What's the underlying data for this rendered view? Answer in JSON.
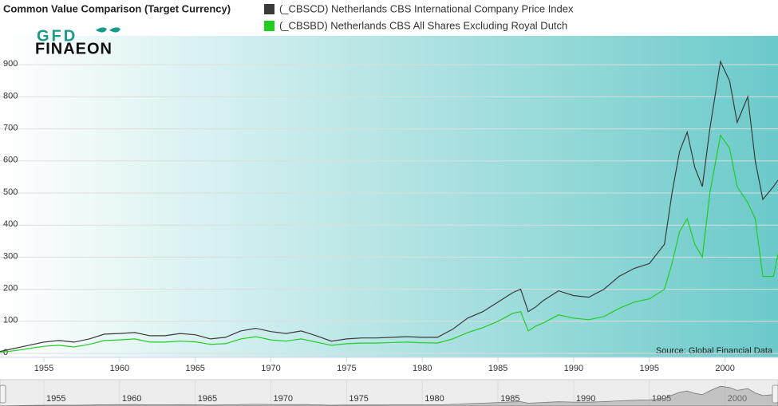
{
  "chart_data": {
    "type": "line",
    "title": "Common Value Comparison (Target Currency)",
    "logo": {
      "top": "GFD",
      "bottom": "FINAEON"
    },
    "source": "Source: Global Financial Data",
    "x": [
      1952,
      1953,
      1954,
      1955,
      1956,
      1957,
      1958,
      1959,
      1960,
      1961,
      1962,
      1963,
      1964,
      1965,
      1966,
      1967,
      1968,
      1969,
      1970,
      1971,
      1972,
      1973,
      1974,
      1975,
      1976,
      1977,
      1978,
      1979,
      1980,
      1981,
      1982,
      1983,
      1984,
      1985,
      1986,
      1986.5,
      1987,
      1987.5,
      1988,
      1989,
      1990,
      1991,
      1992,
      1993,
      1994,
      1995,
      1996,
      1996.5,
      1997,
      1997.5,
      1998,
      1998.5,
      1999,
      1999.7,
      2000.3,
      2000.8,
      2001.5,
      2002,
      2002.5,
      2003.2,
      2003.5
    ],
    "series": [
      {
        "name": "(_CBSCD) Netherlands CBS International Company Price Index",
        "color": "#3a3a3a",
        "values": [
          5,
          15,
          25,
          35,
          40,
          35,
          45,
          60,
          62,
          65,
          55,
          55,
          62,
          58,
          45,
          50,
          70,
          78,
          68,
          62,
          70,
          55,
          38,
          45,
          48,
          48,
          50,
          52,
          50,
          50,
          75,
          110,
          130,
          160,
          190,
          200,
          130,
          145,
          165,
          195,
          180,
          175,
          200,
          240,
          265,
          280,
          340,
          500,
          630,
          690,
          580,
          520,
          700,
          910,
          850,
          720,
          800,
          600,
          480,
          520,
          540
        ]
      },
      {
        "name": "(_CBSBD) Netherlands CBS All Shares Excluding Royal Dutch",
        "color": "#22cc22",
        "values": [
          3,
          8,
          15,
          22,
          25,
          20,
          28,
          40,
          42,
          45,
          35,
          35,
          38,
          36,
          28,
          30,
          45,
          52,
          42,
          38,
          45,
          35,
          25,
          30,
          32,
          32,
          34,
          35,
          33,
          32,
          45,
          65,
          80,
          100,
          125,
          130,
          70,
          85,
          95,
          120,
          110,
          105,
          115,
          140,
          160,
          170,
          200,
          280,
          380,
          420,
          340,
          300,
          500,
          680,
          640,
          520,
          470,
          420,
          240,
          240,
          310
        ]
      }
    ],
    "xlim": [
      1952.1,
      2003.5
    ],
    "xticks": [
      1955,
      1960,
      1965,
      1970,
      1975,
      1980,
      1985,
      1990,
      1995,
      2000
    ],
    "ylim": [
      0,
      990
    ],
    "yticks": [
      0,
      100,
      200,
      300,
      400,
      500,
      600,
      700,
      800,
      900
    ],
    "grid": true
  }
}
